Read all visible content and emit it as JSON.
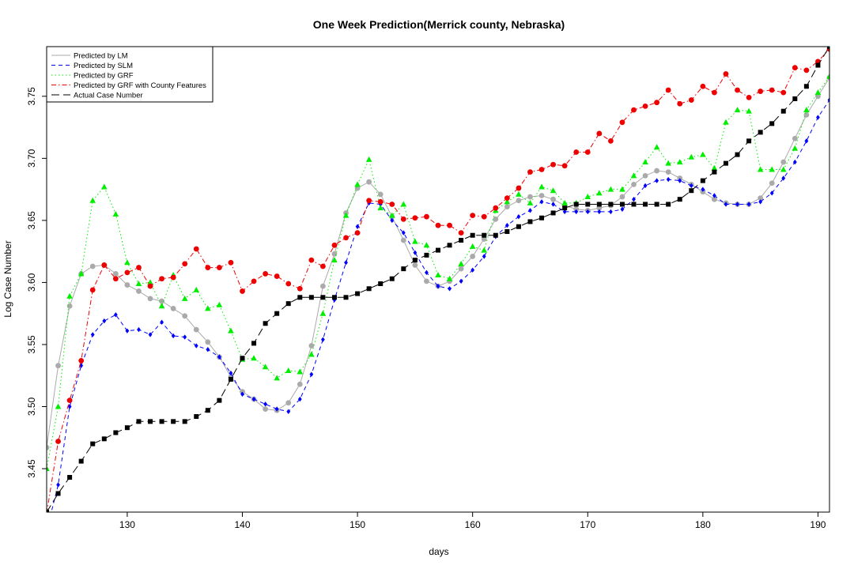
{
  "chart_data": {
    "type": "line",
    "title": "One Week Prediction(Merrick county, Nebraska)",
    "xlabel": "days",
    "ylabel": "Log Case Number",
    "xlim": [
      123,
      191
    ],
    "ylim": [
      3.415,
      3.79
    ],
    "x_ticks": [
      130,
      140,
      150,
      160,
      170,
      180,
      190
    ],
    "x_tick_labels": [
      "130",
      "140",
      "150",
      "160",
      "170",
      "180",
      "190"
    ],
    "y_ticks": [
      3.45,
      3.5,
      3.55,
      3.6,
      3.65,
      3.7,
      3.75
    ],
    "y_tick_labels": [
      "3.45",
      "3.50",
      "3.55",
      "3.60",
      "3.65",
      "3.70",
      "3.75"
    ],
    "grid": false,
    "legend_position": "top-left",
    "x": [
      123,
      124,
      125,
      126,
      127,
      128,
      129,
      130,
      131,
      132,
      133,
      134,
      135,
      136,
      137,
      138,
      139,
      140,
      141,
      142,
      143,
      144,
      145,
      146,
      147,
      148,
      149,
      150,
      151,
      152,
      153,
      154,
      155,
      156,
      157,
      158,
      159,
      160,
      161,
      162,
      163,
      164,
      165,
      166,
      167,
      168,
      169,
      170,
      171,
      172,
      173,
      174,
      175,
      176,
      177,
      178,
      179,
      180,
      181,
      182,
      183,
      184,
      185,
      186,
      187,
      188,
      189,
      190,
      191
    ],
    "series": [
      {
        "name": "Predicted by LM",
        "color": "#aaaaaa",
        "line": "solid",
        "marker": "circle",
        "values": [
          3.467,
          3.533,
          3.581,
          3.607,
          3.613,
          3.614,
          3.607,
          3.598,
          3.593,
          3.587,
          3.585,
          3.579,
          3.573,
          3.562,
          3.552,
          3.54,
          3.524,
          3.512,
          3.506,
          3.498,
          3.497,
          3.503,
          3.518,
          3.549,
          3.597,
          3.623,
          3.656,
          3.676,
          3.681,
          3.671,
          3.653,
          3.634,
          3.614,
          3.601,
          3.597,
          3.601,
          3.611,
          3.621,
          3.635,
          3.651,
          3.661,
          3.666,
          3.669,
          3.67,
          3.667,
          3.662,
          3.659,
          3.658,
          3.66,
          3.662,
          3.669,
          3.679,
          3.686,
          3.69,
          3.689,
          3.684,
          3.679,
          3.673,
          3.667,
          3.664,
          3.663,
          3.663,
          3.668,
          3.68,
          3.697,
          3.716,
          3.735,
          3.75,
          3.765
        ]
      },
      {
        "name": "Predicted by SLM",
        "color": "#0000ff",
        "line": "dashed",
        "marker": "diamond",
        "values": [
          3.4,
          3.437,
          3.5,
          3.533,
          3.558,
          3.569,
          3.574,
          3.561,
          3.562,
          3.558,
          3.568,
          3.557,
          3.556,
          3.549,
          3.546,
          3.54,
          3.527,
          3.51,
          3.506,
          3.502,
          3.498,
          3.496,
          3.506,
          3.526,
          3.554,
          3.586,
          3.616,
          3.645,
          3.664,
          3.663,
          3.65,
          3.64,
          3.624,
          3.608,
          3.597,
          3.595,
          3.601,
          3.61,
          3.621,
          3.637,
          3.646,
          3.653,
          3.658,
          3.665,
          3.663,
          3.657,
          3.657,
          3.657,
          3.657,
          3.657,
          3.659,
          3.667,
          3.678,
          3.682,
          3.683,
          3.682,
          3.678,
          3.675,
          3.67,
          3.663,
          3.663,
          3.663,
          3.665,
          3.672,
          3.684,
          3.697,
          3.714,
          3.733,
          3.747
        ]
      },
      {
        "name": "Predicted by GRF",
        "color": "#00ee00",
        "line": "dotted",
        "marker": "triangle",
        "values": [
          3.45,
          3.5,
          3.589,
          3.607,
          3.666,
          3.677,
          3.655,
          3.616,
          3.599,
          3.6,
          3.581,
          3.606,
          3.587,
          3.594,
          3.579,
          3.582,
          3.561,
          3.538,
          3.539,
          3.532,
          3.523,
          3.529,
          3.528,
          3.542,
          3.575,
          3.618,
          3.654,
          3.679,
          3.699,
          3.66,
          3.654,
          3.663,
          3.633,
          3.63,
          3.606,
          3.603,
          3.615,
          3.629,
          3.626,
          3.658,
          3.665,
          3.671,
          3.664,
          3.677,
          3.674,
          3.664,
          3.664,
          3.669,
          3.672,
          3.675,
          3.675,
          3.686,
          3.697,
          3.709,
          3.696,
          3.697,
          3.701,
          3.703,
          3.692,
          3.729,
          3.739,
          3.738,
          3.691,
          3.691,
          3.691,
          3.708,
          3.739,
          3.753,
          3.766
        ]
      },
      {
        "name": "Predicted by GRF with County Features",
        "color": "#ee0000",
        "line": "dashdot",
        "marker": "circle",
        "values": [
          3.414,
          3.472,
          3.505,
          3.537,
          3.594,
          3.614,
          3.603,
          3.608,
          3.612,
          3.597,
          3.603,
          3.604,
          3.615,
          3.627,
          3.612,
          3.612,
          3.616,
          3.593,
          3.601,
          3.607,
          3.605,
          3.599,
          3.595,
          3.618,
          3.613,
          3.63,
          3.636,
          3.64,
          3.666,
          3.665,
          3.663,
          3.651,
          3.652,
          3.653,
          3.646,
          3.646,
          3.64,
          3.654,
          3.653,
          3.66,
          3.668,
          3.676,
          3.689,
          3.691,
          3.695,
          3.694,
          3.705,
          3.705,
          3.72,
          3.714,
          3.729,
          3.739,
          3.742,
          3.745,
          3.755,
          3.744,
          3.747,
          3.758,
          3.753,
          3.768,
          3.755,
          3.749,
          3.754,
          3.755,
          3.753,
          3.773,
          3.771,
          3.778,
          3.788
        ]
      },
      {
        "name": "Actual Case Number",
        "color": "#000000",
        "line": "longdash",
        "marker": "square",
        "values": [
          3.415,
          3.43,
          3.443,
          3.456,
          3.47,
          3.474,
          3.479,
          3.483,
          3.488,
          3.488,
          3.488,
          3.488,
          3.488,
          3.492,
          3.497,
          3.505,
          3.522,
          3.539,
          3.551,
          3.567,
          3.575,
          3.583,
          3.588,
          3.588,
          3.588,
          3.588,
          3.588,
          3.591,
          3.595,
          3.599,
          3.603,
          3.611,
          3.618,
          3.622,
          3.626,
          3.63,
          3.634,
          3.638,
          3.638,
          3.638,
          3.641,
          3.645,
          3.649,
          3.652,
          3.656,
          3.66,
          3.663,
          3.663,
          3.663,
          3.663,
          3.663,
          3.663,
          3.663,
          3.663,
          3.663,
          3.667,
          3.674,
          3.682,
          3.689,
          3.696,
          3.703,
          3.714,
          3.721,
          3.728,
          3.738,
          3.748,
          3.758,
          3.775,
          3.79
        ]
      }
    ]
  }
}
